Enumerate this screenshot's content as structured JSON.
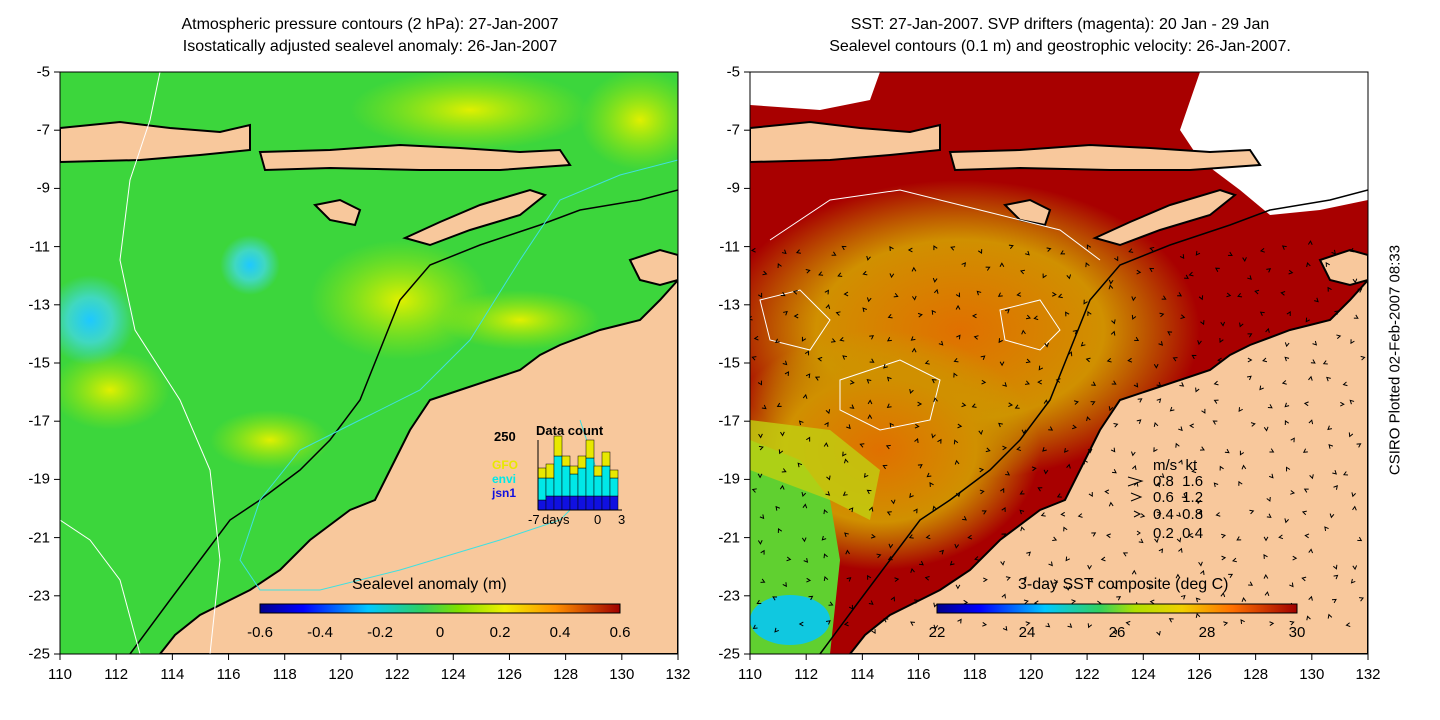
{
  "left_panel": {
    "title_line1": "Atmospheric pressure contours (2 hPa): 27-Jan-2007",
    "title_line2": "Isostatically adjusted sealevel anomaly: 26-Jan-2007",
    "colorbar": {
      "label": "Sealevel anomaly (m)",
      "tick_labels": [
        "-0.6",
        "-0.4",
        "-0.2",
        "0",
        "0.2",
        "0.4",
        "0.6"
      ]
    },
    "inset": {
      "title": "Data count",
      "max_label": "250",
      "legend": [
        {
          "name": "GFO",
          "color": "#e8e800"
        },
        {
          "name": "envi",
          "color": "#00e8e8"
        },
        {
          "name": "jsn1",
          "color": "#1010e0"
        }
      ],
      "axis_labels": [
        "-7",
        "days",
        "0",
        "3"
      ]
    }
  },
  "right_panel": {
    "title_line1": "SST: 27-Jan-2007. SVP drifters (magenta): 20 Jan - 29 Jan",
    "title_line2": "Sealevel contours (0.1 m) and geostrophic velocity: 26-Jan-2007.",
    "colorbar": {
      "label": "3-day SST composite (deg C)",
      "tick_labels": [
        "22",
        "24",
        "26",
        "28",
        "30"
      ]
    },
    "velocity_legend": {
      "header": "m/s  kt",
      "rows": [
        "0.8  1.6",
        "0.6  1.2",
        "0.4  0.8",
        "0.2  0.4"
      ]
    }
  },
  "axes": {
    "x_tick_labels": [
      "110",
      "112",
      "114",
      "116",
      "118",
      "120",
      "122",
      "124",
      "126",
      "128",
      "130",
      "132"
    ],
    "y_tick_labels": [
      "-5",
      "-7",
      "-9",
      "-11",
      "-13",
      "-15",
      "-17",
      "-19",
      "-21",
      "-23",
      "-25"
    ]
  },
  "side_label": "CSIRO Plotted 02-Feb-2007 08:33",
  "colors": {
    "land": "#f8c89c",
    "ocean_green": "#33d633",
    "sst_dark_red": "#a80000",
    "coast_line": "#000000"
  }
}
